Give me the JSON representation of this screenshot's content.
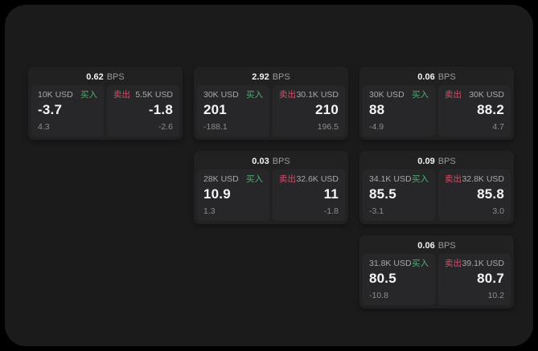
{
  "unit_label": "BPS",
  "buy_label": "买入",
  "sell_label": "卖出",
  "colors": {
    "buy": "#4daf72",
    "sell": "#d0506a",
    "page_bg": "#000000",
    "app_bg": "#1b1b1c",
    "card_bg": "#212122",
    "panel_bg": "#272729"
  },
  "cards": [
    {
      "row": 1,
      "col": 1,
      "bps": "0.62",
      "buy_size": "10K USD",
      "buy_price": "-3.7",
      "buy_delta": "4.3",
      "sell_size": "5.5K USD",
      "sell_price": "-1.8",
      "sell_delta": "-2.6"
    },
    {
      "row": 1,
      "col": 2,
      "bps": "2.92",
      "buy_size": "30K USD",
      "buy_price": "201",
      "buy_delta": "-188.1",
      "sell_size": "30.1K USD",
      "sell_price": "210",
      "sell_delta": "196.5"
    },
    {
      "row": 1,
      "col": 3,
      "bps": "0.06",
      "buy_size": "30K USD",
      "buy_price": "88",
      "buy_delta": "-4.9",
      "sell_size": "30K USD",
      "sell_price": "88.2",
      "sell_delta": "4.7"
    },
    {
      "row": 2,
      "col": 2,
      "bps": "0.03",
      "buy_size": "28K USD",
      "buy_price": "10.9",
      "buy_delta": "1.3",
      "sell_size": "32.6K USD",
      "sell_price": "11",
      "sell_delta": "-1.8"
    },
    {
      "row": 2,
      "col": 3,
      "bps": "0.09",
      "buy_size": "34.1K USD",
      "buy_price": "85.5",
      "buy_delta": "-3.1",
      "sell_size": "32.8K USD",
      "sell_price": "85.8",
      "sell_delta": "3.0"
    },
    {
      "row": 3,
      "col": 3,
      "bps": "0.06",
      "buy_size": "31.8K USD",
      "buy_price": "80.5",
      "buy_delta": "-10.8",
      "sell_size": "39.1K USD",
      "sell_price": "80.7",
      "sell_delta": "10.2"
    }
  ]
}
